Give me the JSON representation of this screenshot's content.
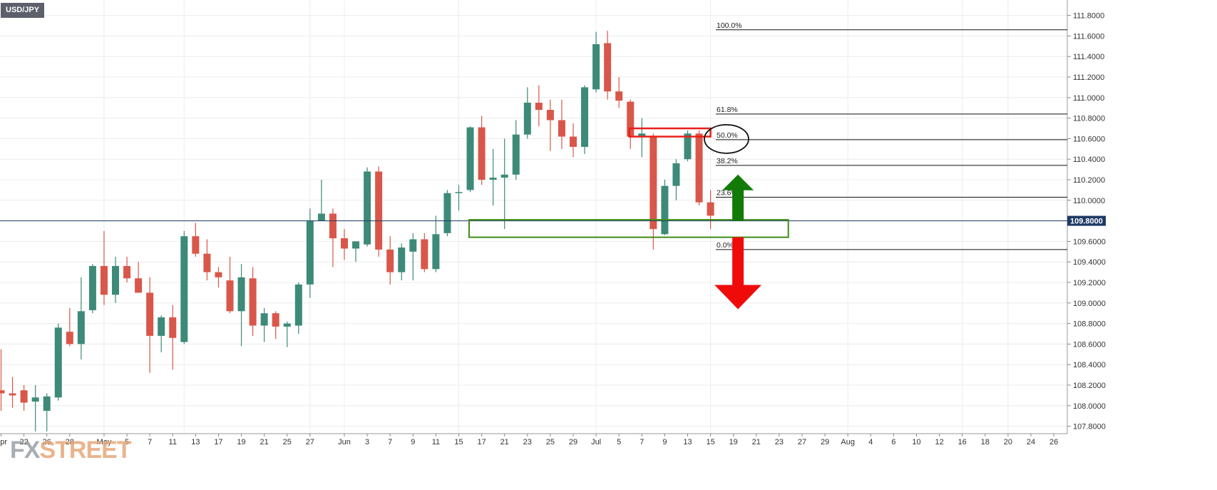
{
  "symbol": "USD/JPY",
  "logo": {
    "prefix": "FX",
    "suffix": "STREET"
  },
  "colors": {
    "bull": "#3d8a79",
    "bear": "#d8574a",
    "grid": "#ececec",
    "price_line": "#1e3a5f",
    "support_box": "#3d8c16",
    "resistance_box": "#e8201a",
    "up_arrow": "#127a06",
    "down_arrow": "#f00b0b"
  },
  "chart_data": {
    "type": "candlestick",
    "title": "USD/JPY",
    "ylim": [
      107.75,
      111.9
    ],
    "y_ticks": [
      "111.8000",
      "111.6000",
      "111.4000",
      "111.2000",
      "111.0000",
      "110.8000",
      "110.6000",
      "110.4000",
      "110.2000",
      "110.0000",
      "109.8000",
      "109.6000",
      "109.4000",
      "109.2000",
      "109.0000",
      "108.8000",
      "108.6000",
      "108.4000",
      "108.2000",
      "108.0000",
      "107.8000"
    ],
    "x_ticks": [
      {
        "label": "Apr",
        "i": 0
      },
      {
        "label": "22",
        "i": 2
      },
      {
        "label": "26",
        "i": 4
      },
      {
        "label": "28",
        "i": 6
      },
      {
        "label": "May",
        "i": 9
      },
      {
        "label": "5",
        "i": 11
      },
      {
        "label": "7",
        "i": 13
      },
      {
        "label": "11",
        "i": 15
      },
      {
        "label": "13",
        "i": 17
      },
      {
        "label": "17",
        "i": 19
      },
      {
        "label": "19",
        "i": 21
      },
      {
        "label": "21",
        "i": 23
      },
      {
        "label": "25",
        "i": 25
      },
      {
        "label": "27",
        "i": 27
      },
      {
        "label": "Jun",
        "i": 30
      },
      {
        "label": "3",
        "i": 32
      },
      {
        "label": "7",
        "i": 34
      },
      {
        "label": "9",
        "i": 36
      },
      {
        "label": "11",
        "i": 38
      },
      {
        "label": "15",
        "i": 40
      },
      {
        "label": "17",
        "i": 42
      },
      {
        "label": "21",
        "i": 44
      },
      {
        "label": "23",
        "i": 46
      },
      {
        "label": "25",
        "i": 48
      },
      {
        "label": "29",
        "i": 50
      },
      {
        "label": "Jul",
        "i": 52
      },
      {
        "label": "5",
        "i": 54
      },
      {
        "label": "7",
        "i": 56
      },
      {
        "label": "9",
        "i": 58
      },
      {
        "label": "13",
        "i": 60
      },
      {
        "label": "15",
        "i": 62
      },
      {
        "label": "19",
        "i": 64
      },
      {
        "label": "21",
        "i": 66
      },
      {
        "label": "23",
        "i": 68
      },
      {
        "label": "27",
        "i": 70
      },
      {
        "label": "29",
        "i": 72
      },
      {
        "label": "Aug",
        "i": 74
      },
      {
        "label": "4",
        "i": 76
      },
      {
        "label": "6",
        "i": 78
      },
      {
        "label": "10",
        "i": 80
      },
      {
        "label": "12",
        "i": 82
      },
      {
        "label": "16",
        "i": 84
      },
      {
        "label": "18",
        "i": 86
      },
      {
        "label": "20",
        "i": 88
      },
      {
        "label": "24",
        "i": 90
      },
      {
        "label": "26",
        "i": 92
      }
    ],
    "candles": [
      {
        "o": 108.15,
        "h": 108.55,
        "l": 107.95,
        "c": 108.12
      },
      {
        "o": 108.12,
        "h": 108.28,
        "l": 107.98,
        "c": 108.1
      },
      {
        "o": 108.15,
        "h": 108.2,
        "l": 107.95,
        "c": 108.03
      },
      {
        "o": 108.04,
        "h": 108.2,
        "l": 107.75,
        "c": 108.08
      },
      {
        "o": 107.95,
        "h": 108.12,
        "l": 107.75,
        "c": 108.09
      },
      {
        "o": 108.08,
        "h": 108.8,
        "l": 108.05,
        "c": 108.76
      },
      {
        "o": 108.72,
        "h": 108.95,
        "l": 108.58,
        "c": 108.6
      },
      {
        "o": 108.6,
        "h": 109.25,
        "l": 108.45,
        "c": 108.92
      },
      {
        "o": 108.93,
        "h": 109.38,
        "l": 108.9,
        "c": 109.36
      },
      {
        "o": 109.36,
        "h": 109.7,
        "l": 108.98,
        "c": 109.08
      },
      {
        "o": 109.08,
        "h": 109.45,
        "l": 109.0,
        "c": 109.36
      },
      {
        "o": 109.36,
        "h": 109.45,
        "l": 109.2,
        "c": 109.24
      },
      {
        "o": 109.24,
        "h": 109.4,
        "l": 109.1,
        "c": 109.1
      },
      {
        "o": 109.1,
        "h": 109.25,
        "l": 108.32,
        "c": 108.68
      },
      {
        "o": 108.68,
        "h": 108.88,
        "l": 108.52,
        "c": 108.86
      },
      {
        "o": 108.86,
        "h": 108.98,
        "l": 108.35,
        "c": 108.66
      },
      {
        "o": 108.62,
        "h": 109.7,
        "l": 108.6,
        "c": 109.65
      },
      {
        "o": 109.65,
        "h": 109.78,
        "l": 109.45,
        "c": 109.48
      },
      {
        "o": 109.48,
        "h": 109.62,
        "l": 109.22,
        "c": 109.3
      },
      {
        "o": 109.3,
        "h": 109.35,
        "l": 109.15,
        "c": 109.25
      },
      {
        "o": 109.22,
        "h": 109.45,
        "l": 108.9,
        "c": 108.92
      },
      {
        "o": 108.92,
        "h": 109.38,
        "l": 108.58,
        "c": 109.25
      },
      {
        "o": 109.24,
        "h": 109.35,
        "l": 108.68,
        "c": 108.78
      },
      {
        "o": 108.78,
        "h": 108.95,
        "l": 108.62,
        "c": 108.9
      },
      {
        "o": 108.9,
        "h": 108.92,
        "l": 108.65,
        "c": 108.77
      },
      {
        "o": 108.77,
        "h": 108.82,
        "l": 108.57,
        "c": 108.8
      },
      {
        "o": 108.78,
        "h": 109.2,
        "l": 108.7,
        "c": 109.18
      },
      {
        "o": 109.18,
        "h": 109.92,
        "l": 109.05,
        "c": 109.8
      },
      {
        "o": 109.8,
        "h": 110.2,
        "l": 109.8,
        "c": 109.87
      },
      {
        "o": 109.87,
        "h": 109.92,
        "l": 109.35,
        "c": 109.63
      },
      {
        "o": 109.63,
        "h": 109.72,
        "l": 109.42,
        "c": 109.53
      },
      {
        "o": 109.53,
        "h": 109.58,
        "l": 109.4,
        "c": 109.6
      },
      {
        "o": 109.57,
        "h": 110.32,
        "l": 109.55,
        "c": 110.28
      },
      {
        "o": 110.28,
        "h": 110.33,
        "l": 109.45,
        "c": 109.52
      },
      {
        "o": 109.52,
        "h": 109.65,
        "l": 109.18,
        "c": 109.3
      },
      {
        "o": 109.3,
        "h": 109.58,
        "l": 109.22,
        "c": 109.54
      },
      {
        "o": 109.5,
        "h": 109.68,
        "l": 109.22,
        "c": 109.62
      },
      {
        "o": 109.62,
        "h": 109.68,
        "l": 109.3,
        "c": 109.33
      },
      {
        "o": 109.33,
        "h": 109.85,
        "l": 109.3,
        "c": 109.67
      },
      {
        "o": 109.68,
        "h": 110.1,
        "l": 109.65,
        "c": 110.07
      },
      {
        "o": 110.07,
        "h": 110.15,
        "l": 109.9,
        "c": 110.08
      },
      {
        "o": 110.1,
        "h": 110.72,
        "l": 110.08,
        "c": 110.71
      },
      {
        "o": 110.71,
        "h": 110.82,
        "l": 110.15,
        "c": 110.2
      },
      {
        "o": 110.2,
        "h": 110.5,
        "l": 109.95,
        "c": 110.22
      },
      {
        "o": 110.22,
        "h": 110.6,
        "l": 109.72,
        "c": 110.25
      },
      {
        "o": 110.25,
        "h": 110.78,
        "l": 110.2,
        "c": 110.64
      },
      {
        "o": 110.64,
        "h": 111.1,
        "l": 110.6,
        "c": 110.95
      },
      {
        "o": 110.95,
        "h": 111.12,
        "l": 110.72,
        "c": 110.88
      },
      {
        "o": 110.88,
        "h": 110.98,
        "l": 110.48,
        "c": 110.78
      },
      {
        "o": 110.78,
        "h": 110.98,
        "l": 110.5,
        "c": 110.62
      },
      {
        "o": 110.62,
        "h": 110.75,
        "l": 110.42,
        "c": 110.52
      },
      {
        "o": 110.52,
        "h": 111.12,
        "l": 110.45,
        "c": 111.1
      },
      {
        "o": 111.08,
        "h": 111.64,
        "l": 111.05,
        "c": 111.52
      },
      {
        "o": 111.53,
        "h": 111.65,
        "l": 110.98,
        "c": 111.06
      },
      {
        "o": 111.06,
        "h": 111.2,
        "l": 110.9,
        "c": 110.97
      },
      {
        "o": 110.96,
        "h": 110.98,
        "l": 110.5,
        "c": 110.62
      },
      {
        "o": 110.62,
        "h": 110.8,
        "l": 110.42,
        "c": 110.65
      },
      {
        "o": 110.62,
        "h": 110.65,
        "l": 109.52,
        "c": 109.72
      },
      {
        "o": 109.67,
        "h": 110.2,
        "l": 109.66,
        "c": 110.14
      },
      {
        "o": 110.14,
        "h": 110.4,
        "l": 110.0,
        "c": 110.36
      },
      {
        "o": 110.4,
        "h": 110.68,
        "l": 110.38,
        "c": 110.65
      },
      {
        "o": 110.65,
        "h": 110.68,
        "l": 109.95,
        "c": 109.98
      },
      {
        "o": 109.98,
        "h": 110.1,
        "l": 109.72,
        "c": 109.85
      }
    ],
    "current_price": {
      "value": 109.8,
      "label": "109.8000"
    },
    "fibonacci": [
      {
        "label": "100.0%",
        "price": 111.66
      },
      {
        "label": "61.8%",
        "price": 110.84
      },
      {
        "label": "50.0%",
        "price": 110.59
      },
      {
        "label": "38.2%",
        "price": 110.34
      },
      {
        "label": "23.6%",
        "price": 110.03
      },
      {
        "label": "0.0%",
        "price": 109.52
      }
    ],
    "annotations": {
      "resistance_box": {
        "i_from": 54.9,
        "i_to": 62.0,
        "p_top": 110.7,
        "p_bottom": 110.62
      },
      "support_box": {
        "i_from": 40.9,
        "i_to": 68.8,
        "p_top": 109.81,
        "p_bottom": 109.64
      },
      "ellipse_around": "50.0%",
      "up_arrow": {
        "i": 64.4,
        "p_from": 109.8,
        "p_to": 110.25
      },
      "down_arrow": {
        "i": 64.4,
        "p_from": 109.64,
        "p_to": 108.94
      }
    }
  }
}
